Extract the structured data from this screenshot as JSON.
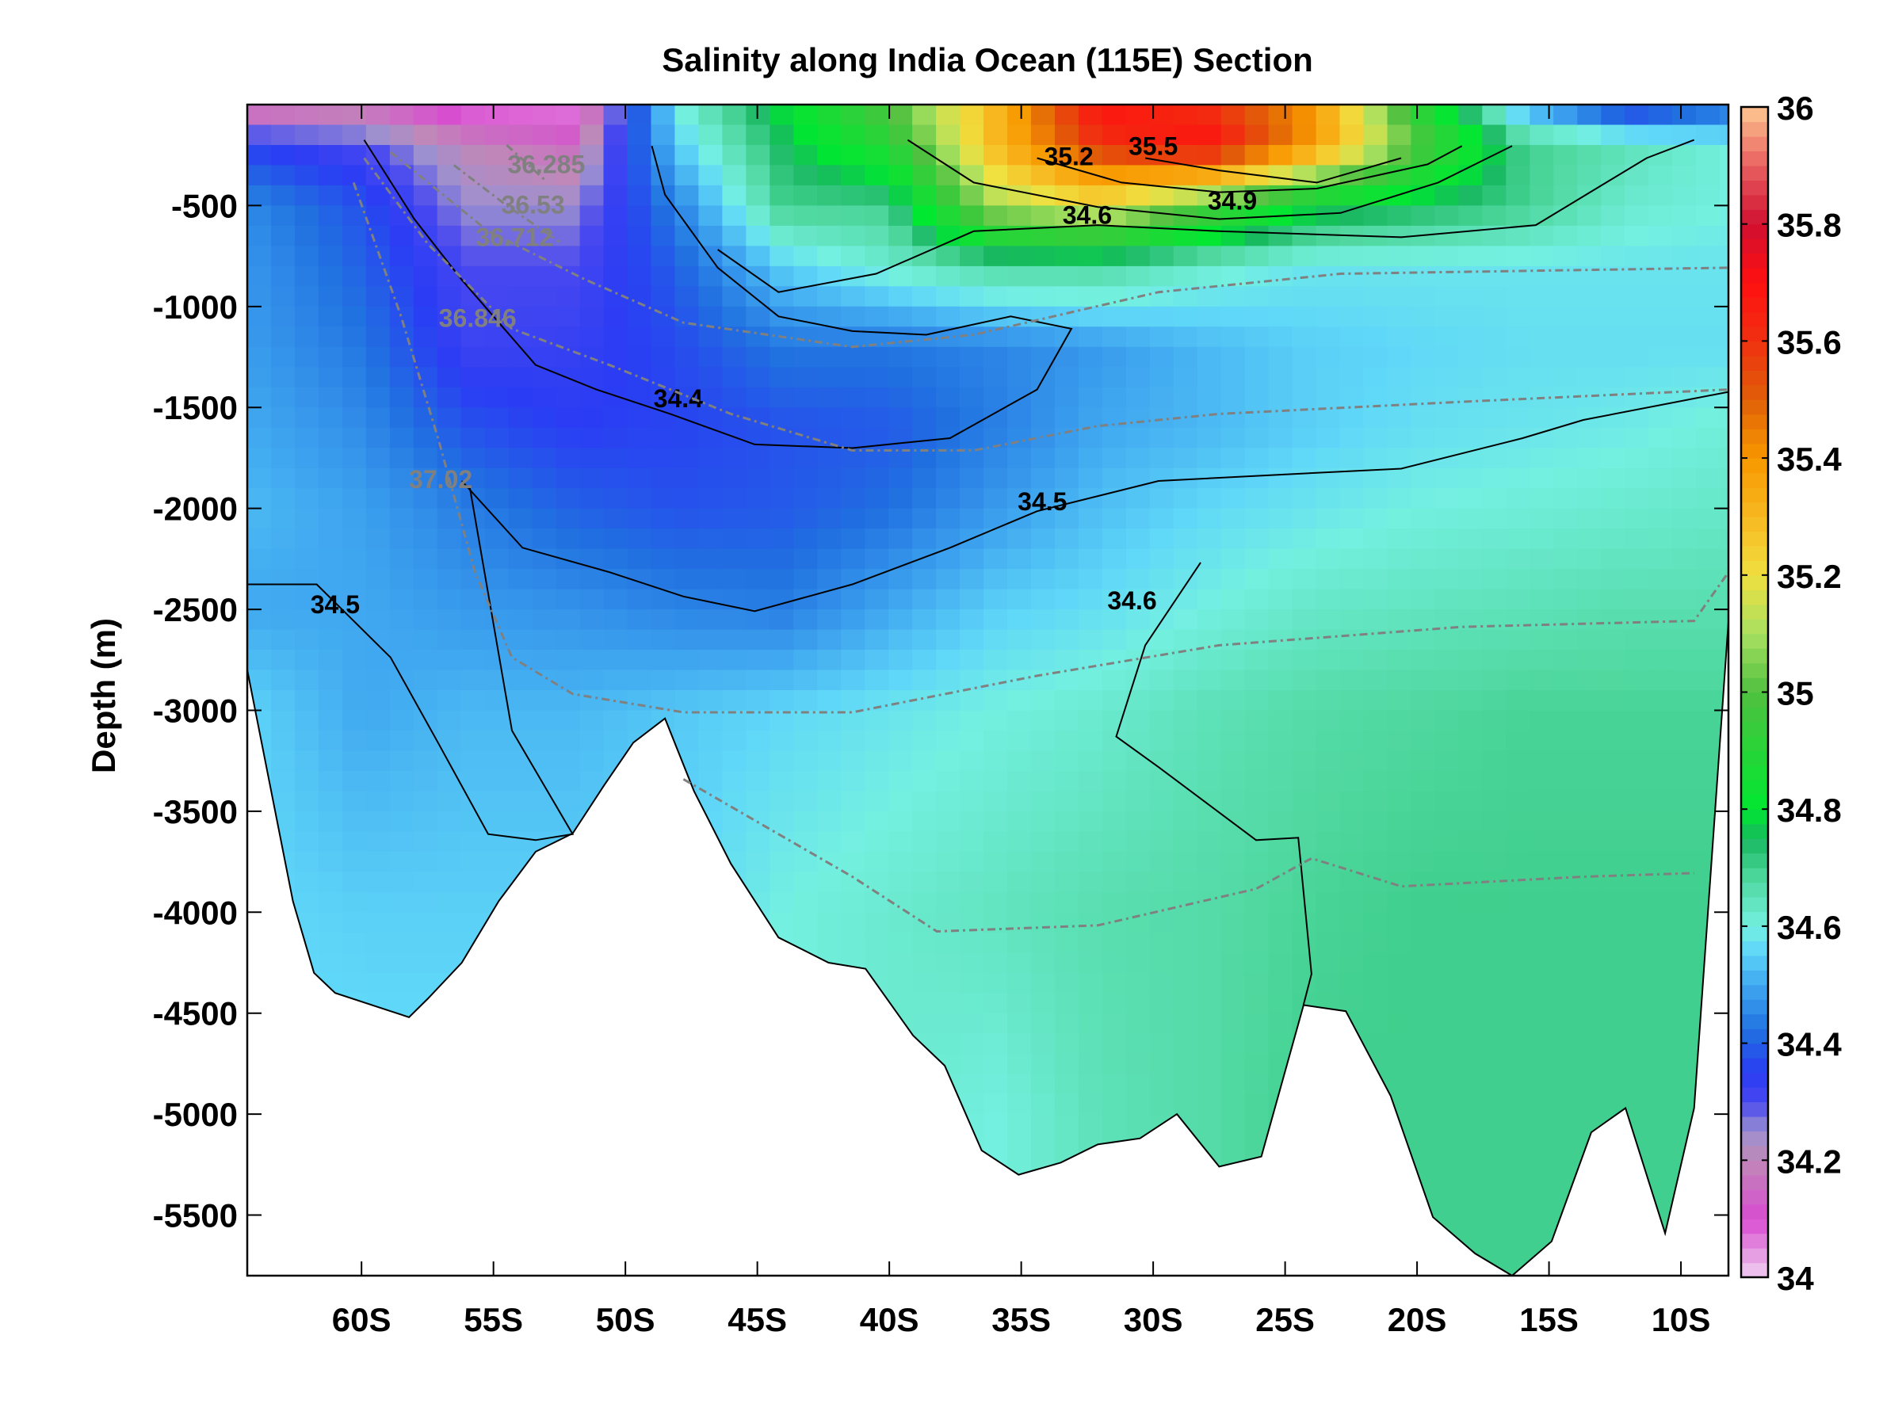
{
  "chart_data": {
    "type": "heatmap",
    "title": "Salinity along India Ocean (115E) Section",
    "xlabel": "",
    "ylabel": "Depth (m)",
    "xlim": [
      -64.33,
      -8.2
    ],
    "ylim": [
      -5800,
      0
    ],
    "x_ticks": [
      {
        "value": -60,
        "label": "60S"
      },
      {
        "value": -55,
        "label": "55S"
      },
      {
        "value": -50,
        "label": "50S"
      },
      {
        "value": -45,
        "label": "45S"
      },
      {
        "value": -40,
        "label": "40S"
      },
      {
        "value": -35,
        "label": "35S"
      },
      {
        "value": -30,
        "label": "30S"
      },
      {
        "value": -25,
        "label": "25S"
      },
      {
        "value": -20,
        "label": "20S"
      },
      {
        "value": -15,
        "label": "15S"
      },
      {
        "value": -10,
        "label": "10S"
      }
    ],
    "y_ticks": [
      {
        "value": -500,
        "label": "-500"
      },
      {
        "value": -1000,
        "label": "-1000"
      },
      {
        "value": -1500,
        "label": "-1500"
      },
      {
        "value": -2000,
        "label": "-2000"
      },
      {
        "value": -2500,
        "label": "-2500"
      },
      {
        "value": -3000,
        "label": "-3000"
      },
      {
        "value": -3500,
        "label": "-3500"
      },
      {
        "value": -4000,
        "label": "-4000"
      },
      {
        "value": -4500,
        "label": "-4500"
      },
      {
        "value": -5000,
        "label": "-5000"
      },
      {
        "value": -5500,
        "label": "-5500"
      }
    ],
    "colorbar": {
      "range": [
        34,
        36
      ],
      "ticks": [
        {
          "value": 36,
          "label": "36"
        },
        {
          "value": 35.8,
          "label": "35.8"
        },
        {
          "value": 35.6,
          "label": "35.6"
        },
        {
          "value": 35.4,
          "label": "35.4"
        },
        {
          "value": 35.2,
          "label": "35.2"
        },
        {
          "value": 35,
          "label": "35"
        },
        {
          "value": 34.8,
          "label": "34.8"
        },
        {
          "value": 34.6,
          "label": "34.6"
        },
        {
          "value": 34.4,
          "label": "34.4"
        },
        {
          "value": 34.2,
          "label": "34.2"
        },
        {
          "value": 34,
          "label": "34"
        }
      ],
      "colormap": [
        [
          34.0,
          "#f0d0f0"
        ],
        [
          34.1,
          "#d84cd0"
        ],
        [
          34.2,
          "#c088b8"
        ],
        [
          34.25,
          "#9c90d0"
        ],
        [
          34.3,
          "#4848f0"
        ],
        [
          34.35,
          "#2a3cf4"
        ],
        [
          34.42,
          "#2070e0"
        ],
        [
          34.5,
          "#40a8f0"
        ],
        [
          34.56,
          "#60d8f8"
        ],
        [
          34.6,
          "#74f0e0"
        ],
        [
          34.68,
          "#50d8a0"
        ],
        [
          34.75,
          "#18b860"
        ],
        [
          34.8,
          "#00e830"
        ],
        [
          35.0,
          "#50c040"
        ],
        [
          35.1,
          "#a8e060"
        ],
        [
          35.2,
          "#f0e040"
        ],
        [
          35.3,
          "#f8b820"
        ],
        [
          35.4,
          "#f89800"
        ],
        [
          35.5,
          "#e06008"
        ],
        [
          35.6,
          "#f03010"
        ],
        [
          35.7,
          "#ff1010"
        ],
        [
          35.8,
          "#d01030"
        ],
        [
          35.9,
          "#e86060"
        ],
        [
          36.0,
          "#ffc890"
        ]
      ]
    },
    "grid": {
      "latitudes": [
        -64,
        -60,
        -56,
        -52,
        -48,
        -44,
        -40,
        -36,
        -32,
        -28,
        -24,
        -20,
        -16,
        -12,
        -8
      ],
      "depths": [
        0,
        200,
        500,
        800,
        1200,
        1600,
        2000,
        2500,
        3000,
        4000,
        5000,
        5800
      ],
      "salinity": [
        [
          34.1,
          34.15,
          34.05,
          34.05,
          34.6,
          34.8,
          35.0,
          35.3,
          35.7,
          35.6,
          35.4,
          34.9,
          34.5,
          34.3,
          34.4
        ],
        [
          34.35,
          34.3,
          34.2,
          34.15,
          34.55,
          34.75,
          34.9,
          35.3,
          35.6,
          35.7,
          35.4,
          35.0,
          34.7,
          34.65,
          34.6
        ],
        [
          34.45,
          34.38,
          34.25,
          34.25,
          34.45,
          34.7,
          34.7,
          35.1,
          35.2,
          35.0,
          34.8,
          34.75,
          34.7,
          34.62,
          34.6
        ],
        [
          34.47,
          34.4,
          34.3,
          34.3,
          34.4,
          34.55,
          34.62,
          34.68,
          34.68,
          34.62,
          34.58,
          34.58,
          34.58,
          34.58,
          34.58
        ],
        [
          34.48,
          34.43,
          34.32,
          34.33,
          34.37,
          34.43,
          34.43,
          34.45,
          34.48,
          34.52,
          34.55,
          34.56,
          34.57,
          34.57,
          34.57
        ],
        [
          34.5,
          34.46,
          34.38,
          34.35,
          34.36,
          34.38,
          34.39,
          34.44,
          34.5,
          34.52,
          34.55,
          34.57,
          34.58,
          34.59,
          34.61
        ],
        [
          34.52,
          34.49,
          34.44,
          34.4,
          34.38,
          34.39,
          34.42,
          34.48,
          34.53,
          34.56,
          34.58,
          34.6,
          34.61,
          34.62,
          34.63
        ],
        [
          34.5,
          34.5,
          34.48,
          34.47,
          34.45,
          34.44,
          34.5,
          34.55,
          34.57,
          34.6,
          34.63,
          34.64,
          34.65,
          34.66,
          34.66
        ],
        [
          34.55,
          34.5,
          34.52,
          34.52,
          34.54,
          34.56,
          34.58,
          34.6,
          34.62,
          34.65,
          34.67,
          34.68,
          34.69,
          34.69,
          34.69
        ],
        [
          34.56,
          34.55,
          34.55,
          34.55,
          34.56,
          34.6,
          34.62,
          34.64,
          34.66,
          34.67,
          34.69,
          34.7,
          34.7,
          34.7,
          34.7
        ],
        [
          34.57,
          34.57,
          34.57,
          34.57,
          34.58,
          34.6,
          34.62,
          34.6,
          34.65,
          34.67,
          34.7,
          34.7,
          34.7,
          34.7,
          34.7
        ],
        [
          34.57,
          34.57,
          34.57,
          34.57,
          34.58,
          34.6,
          34.62,
          34.6,
          34.65,
          34.67,
          34.7,
          34.7,
          34.7,
          34.7,
          34.7
        ]
      ]
    },
    "bottom_depth": [
      [
        -64.33,
        2800
      ],
      [
        -62.6,
        3945
      ],
      [
        -61.8,
        4300
      ],
      [
        -61.0,
        4400
      ],
      [
        -58.9,
        4490
      ],
      [
        -58.2,
        4520
      ],
      [
        -57.5,
        4430
      ],
      [
        -56.2,
        4250
      ],
      [
        -54.8,
        3945
      ],
      [
        -53.4,
        3700
      ],
      [
        -52.0,
        3610
      ],
      [
        -50.8,
        3370
      ],
      [
        -49.7,
        3160
      ],
      [
        -48.5,
        3040
      ],
      [
        -47.4,
        3400
      ],
      [
        -46.0,
        3760
      ],
      [
        -44.2,
        4125
      ],
      [
        -42.3,
        4250
      ],
      [
        -40.9,
        4280
      ],
      [
        -39.1,
        4610
      ],
      [
        -37.9,
        4760
      ],
      [
        -36.5,
        5180
      ],
      [
        -35.1,
        5300
      ],
      [
        -33.5,
        5240
      ],
      [
        -32.1,
        5150
      ],
      [
        -30.5,
        5120
      ],
      [
        -29.1,
        5000
      ],
      [
        -27.5,
        5260
      ],
      [
        -25.9,
        5210
      ],
      [
        -24.3,
        4460
      ],
      [
        -22.7,
        4490
      ],
      [
        -21.0,
        4910
      ],
      [
        -19.4,
        5510
      ],
      [
        -17.8,
        5690
      ],
      [
        -16.4,
        5800
      ],
      [
        -14.9,
        5630
      ],
      [
        -13.4,
        5090
      ],
      [
        -12.1,
        4970
      ],
      [
        -10.6,
        5590
      ],
      [
        -9.5,
        4970
      ],
      [
        -8.2,
        2560
      ]
    ],
    "contours": [
      {
        "level": "34.4",
        "style": "solid",
        "points": [
          [
            -59.9,
            175
          ],
          [
            -58.0,
            567
          ],
          [
            -56.2,
            868
          ],
          [
            -53.4,
            1290
          ],
          [
            -51.1,
            1411
          ],
          [
            -48.3,
            1532
          ],
          [
            -45.1,
            1683
          ],
          [
            -41.4,
            1701
          ],
          [
            -37.7,
            1652
          ],
          [
            -34.4,
            1411
          ],
          [
            -33.1,
            1110
          ],
          [
            -35.4,
            1049
          ],
          [
            -38.6,
            1140
          ],
          [
            -41.4,
            1122
          ],
          [
            -44.2,
            1049
          ],
          [
            -46.5,
            808
          ],
          [
            -48.5,
            446
          ],
          [
            -49.0,
            205
          ]
        ],
        "label_at": [
          -48.0,
          1500
        ]
      },
      {
        "level": "34.5",
        "style": "solid",
        "points": [
          [
            -56.2,
            1864
          ],
          [
            -53.9,
            2195
          ],
          [
            -50.6,
            2316
          ],
          [
            -47.8,
            2436
          ],
          [
            -45.1,
            2509
          ],
          [
            -41.4,
            2376
          ],
          [
            -37.7,
            2195
          ],
          [
            -34.4,
            2014
          ],
          [
            -29.8,
            1864
          ],
          [
            -25.2,
            1833
          ],
          [
            -20.6,
            1803
          ],
          [
            -16.0,
            1652
          ],
          [
            -13.7,
            1562
          ],
          [
            -8.2,
            1423
          ]
        ],
        "label_at": [
          -34.2,
          2010
        ]
      },
      {
        "level": "34.5",
        "style": "solid",
        "points": [
          [
            -64.33,
            2376
          ],
          [
            -61.7,
            2376
          ],
          [
            -58.9,
            2738
          ],
          [
            -57.1,
            3160
          ],
          [
            -55.2,
            3613
          ],
          [
            -53.4,
            3643
          ],
          [
            -52.0,
            3613
          ],
          [
            -54.3,
            3100
          ],
          [
            -55.9,
            1894
          ]
        ],
        "label_at": [
          -61.0,
          2520
        ]
      },
      {
        "level": "34.6",
        "style": "solid",
        "points": [
          [
            -46.5,
            718
          ],
          [
            -44.2,
            929
          ],
          [
            -40.5,
            838
          ],
          [
            -36.8,
            627
          ],
          [
            -32.1,
            597
          ],
          [
            -27.5,
            627
          ],
          [
            -20.6,
            657
          ],
          [
            -15.5,
            597
          ],
          [
            -11.3,
            265
          ],
          [
            -9.5,
            175
          ]
        ],
        "label_at": [
          -32.5,
          590
        ]
      },
      {
        "level": "34.6",
        "style": "solid",
        "points": [
          [
            -28.2,
            2268
          ],
          [
            -30.3,
            2678
          ],
          [
            -31.4,
            3130
          ],
          [
            -29.8,
            3281
          ],
          [
            -26.1,
            3643
          ],
          [
            -24.5,
            3631
          ],
          [
            -24.0,
            4306
          ],
          [
            -24.3,
            4457
          ]
        ],
        "label_at": [
          -30.8,
          2500
        ]
      },
      {
        "level": "34.9",
        "style": "solid",
        "points": [
          [
            -39.3,
            175
          ],
          [
            -36.8,
            386
          ],
          [
            -32.1,
            507
          ],
          [
            -27.5,
            567
          ],
          [
            -22.9,
            537
          ],
          [
            -19.2,
            386
          ],
          [
            -16.4,
            205
          ]
        ],
        "label_at": [
          -27.0,
          520
        ]
      },
      {
        "level": "35.2",
        "style": "solid",
        "points": [
          [
            -34.4,
            265
          ],
          [
            -31.2,
            386
          ],
          [
            -27.5,
            434
          ],
          [
            -23.8,
            416
          ],
          [
            -19.6,
            296
          ],
          [
            -18.3,
            205
          ]
        ],
        "label_at": [
          -33.2,
          300
        ]
      },
      {
        "level": "35.5",
        "style": "solid",
        "points": [
          [
            -30.3,
            265
          ],
          [
            -27.5,
            326
          ],
          [
            -23.8,
            386
          ],
          [
            -20.6,
            265
          ]
        ],
        "label_at": [
          -30.0,
          250
        ]
      },
      {
        "level": "36.712",
        "style": "dashed",
        "points": [
          [
            -58.9,
            235
          ],
          [
            -55.2,
            627
          ],
          [
            -51.5,
            868
          ],
          [
            -47.8,
            1080
          ],
          [
            -41.4,
            1200
          ],
          [
            -36.8,
            1140
          ],
          [
            -29.8,
            929
          ],
          [
            -22.9,
            838
          ],
          [
            -8.2,
            808
          ]
        ],
        "label_at": [
          -54.2,
          700
        ]
      },
      {
        "level": "36.846",
        "style": "dashed",
        "points": [
          [
            -59.9,
            265
          ],
          [
            -57.5,
            688
          ],
          [
            -54.3,
            1110
          ],
          [
            -50.6,
            1290
          ],
          [
            -46.0,
            1532
          ],
          [
            -41.4,
            1713
          ],
          [
            -36.8,
            1713
          ],
          [
            -32.1,
            1592
          ],
          [
            -27.5,
            1532
          ],
          [
            -18.3,
            1472
          ],
          [
            -8.2,
            1411
          ]
        ],
        "label_at": [
          -55.6,
          1100
        ]
      },
      {
        "level": "37.02",
        "style": "dashed",
        "points": [
          [
            -60.3,
            386
          ],
          [
            -58.5,
            1049
          ],
          [
            -57.1,
            1652
          ],
          [
            -55.7,
            2316
          ],
          [
            -54.3,
            2738
          ],
          [
            -52.0,
            2919
          ],
          [
            -47.8,
            3010
          ],
          [
            -41.4,
            3010
          ],
          [
            -34.4,
            2829
          ],
          [
            -27.5,
            2678
          ],
          [
            -18.3,
            2587
          ],
          [
            -9.5,
            2557
          ],
          [
            -8.2,
            2316
          ]
        ],
        "label_at": [
          -57.0,
          1900
        ]
      },
      {
        "level": "",
        "style": "dashed",
        "points": [
          [
            -47.8,
            3341
          ],
          [
            -41.4,
            3824
          ],
          [
            -38.2,
            4095
          ],
          [
            -32.1,
            4065
          ],
          [
            -26.1,
            3884
          ],
          [
            -24.0,
            3733
          ],
          [
            -20.6,
            3872
          ],
          [
            -13.7,
            3824
          ],
          [
            -9.5,
            3806
          ]
        ]
      },
      {
        "level": "36.53",
        "style": "dashed",
        "points": [
          [
            -56.5,
            300
          ],
          [
            -54.5,
            500
          ],
          [
            -52.5,
            680
          ]
        ],
        "label_at": [
          -53.5,
          540
        ]
      },
      {
        "level": "36.285",
        "style": "dashed",
        "points": [
          [
            -54.5,
            200
          ],
          [
            -53.0,
            380
          ]
        ],
        "label_at": [
          -53.0,
          340
        ]
      }
    ]
  }
}
